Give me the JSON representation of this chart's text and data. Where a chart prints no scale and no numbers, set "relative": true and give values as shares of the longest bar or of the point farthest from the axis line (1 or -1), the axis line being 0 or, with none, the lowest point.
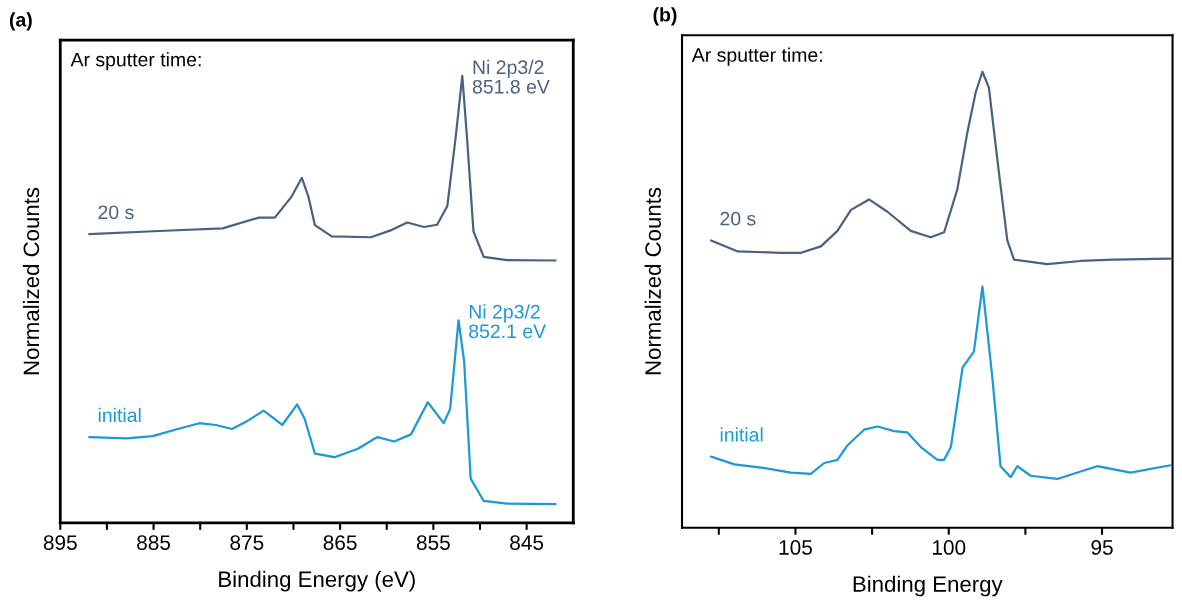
{
  "chart_data": [
    {
      "type": "line",
      "title": "(a)",
      "xlabel": "Binding Energy (eV)",
      "ylabel": "Normalized Counts",
      "relative": true,
      "tick_labels": "x",
      "grid": false,
      "legend": false,
      "marker": "none",
      "line_style": "solid",
      "xlim": [
        895,
        840
      ],
      "xticks": [
        895,
        {
          "value": 890,
          "label": null
        },
        885,
        {
          "value": 880,
          "label": null
        },
        875,
        {
          "value": 870,
          "label": null
        },
        865,
        {
          "value": 860,
          "label": null
        },
        855,
        {
          "value": 850,
          "label": null
        },
        845
      ],
      "annotations": [
        "Ar sputter time:",
        {
          "text": "Ni 2p3/2\n851.8 eV",
          "x": 851.9,
          "y": 1.0
        },
        {
          "text": "Ni 2p3/2\n852.1 eV",
          "x": 852.3,
          "y": 0.453
        }
      ],
      "series": [
        {
          "name": "20 s",
          "color": "#4a6282",
          "x": [
            891.9,
            884.4,
            877.6,
            873.7,
            872.0,
            870.2,
            869.1,
            868.4,
            867.7,
            865.9,
            861.7,
            859.5,
            857.8,
            856.0,
            854.6,
            853.5,
            852.6,
            851.9,
            851.4,
            850.7,
            849.6,
            847.1,
            841.9
          ],
          "values": [
            0.646,
            0.653,
            0.659,
            0.683,
            0.683,
            0.73,
            0.772,
            0.73,
            0.666,
            0.641,
            0.639,
            0.655,
            0.672,
            0.662,
            0.667,
            0.709,
            0.864,
            1.0,
            0.864,
            0.652,
            0.595,
            0.588,
            0.587
          ]
        },
        {
          "name": "initial",
          "color": "#1a9ad6",
          "x": [
            891.9,
            887.9,
            885.1,
            882.6,
            880.1,
            878.3,
            876.6,
            875.1,
            873.2,
            871.2,
            869.6,
            868.8,
            867.7,
            865.6,
            863.1,
            861.0,
            859.2,
            857.4,
            855.6,
            853.9,
            853.2,
            852.3,
            851.7,
            851.0,
            849.6,
            847.1,
            841.9
          ],
          "values": [
            0.192,
            0.189,
            0.194,
            0.209,
            0.223,
            0.219,
            0.21,
            0.226,
            0.251,
            0.219,
            0.265,
            0.233,
            0.155,
            0.147,
            0.166,
            0.192,
            0.182,
            0.198,
            0.27,
            0.223,
            0.255,
            0.453,
            0.361,
            0.099,
            0.049,
            0.043,
            0.042
          ]
        }
      ]
    },
    {
      "type": "line",
      "title": "(b)",
      "xlabel": "Binding Energy",
      "ylabel": "Normalized Counts",
      "relative": true,
      "tick_labels": "x",
      "grid": false,
      "legend": false,
      "marker": "none",
      "line_style": "solid",
      "xlim": [
        108.7,
        92.7
      ],
      "xticks": [
        {
          "value": 107.5,
          "label": null
        },
        105,
        {
          "value": 102.5,
          "label": null
        },
        100,
        {
          "value": 97.5,
          "label": null
        },
        95
      ],
      "annotations": [
        "Ar sputter time:"
      ],
      "series": [
        {
          "name": "20 s",
          "color": "#4a6282",
          "x": [
            107.75,
            106.88,
            105.47,
            104.82,
            104.17,
            103.63,
            103.19,
            102.6,
            102.0,
            101.24,
            100.59,
            100.15,
            99.72,
            99.39,
            99.12,
            98.9,
            98.69,
            98.41,
            98.09,
            97.87,
            96.79,
            95.7,
            94.62,
            92.77
          ],
          "values": [
            0.63,
            0.606,
            0.603,
            0.603,
            0.617,
            0.651,
            0.697,
            0.72,
            0.693,
            0.651,
            0.637,
            0.648,
            0.742,
            0.868,
            0.955,
            1.0,
            0.965,
            0.805,
            0.63,
            0.588,
            0.578,
            0.585,
            0.588,
            0.59
          ]
        },
        {
          "name": "initial",
          "color": "#1a9ad6",
          "x": [
            107.75,
            106.99,
            106.12,
            105.15,
            104.5,
            104.06,
            103.63,
            103.3,
            102.76,
            102.32,
            101.78,
            101.35,
            100.91,
            100.37,
            100.15,
            99.93,
            99.55,
            99.18,
            98.9,
            98.58,
            98.31,
            97.98,
            97.76,
            97.33,
            96.46,
            95.16,
            94.07,
            92.77
          ],
          "values": [
            0.156,
            0.139,
            0.132,
            0.121,
            0.118,
            0.142,
            0.149,
            0.181,
            0.215,
            0.222,
            0.212,
            0.209,
            0.177,
            0.149,
            0.149,
            0.177,
            0.351,
            0.386,
            0.529,
            0.331,
            0.135,
            0.111,
            0.135,
            0.114,
            0.107,
            0.135,
            0.121,
            0.137
          ]
        }
      ]
    }
  ]
}
